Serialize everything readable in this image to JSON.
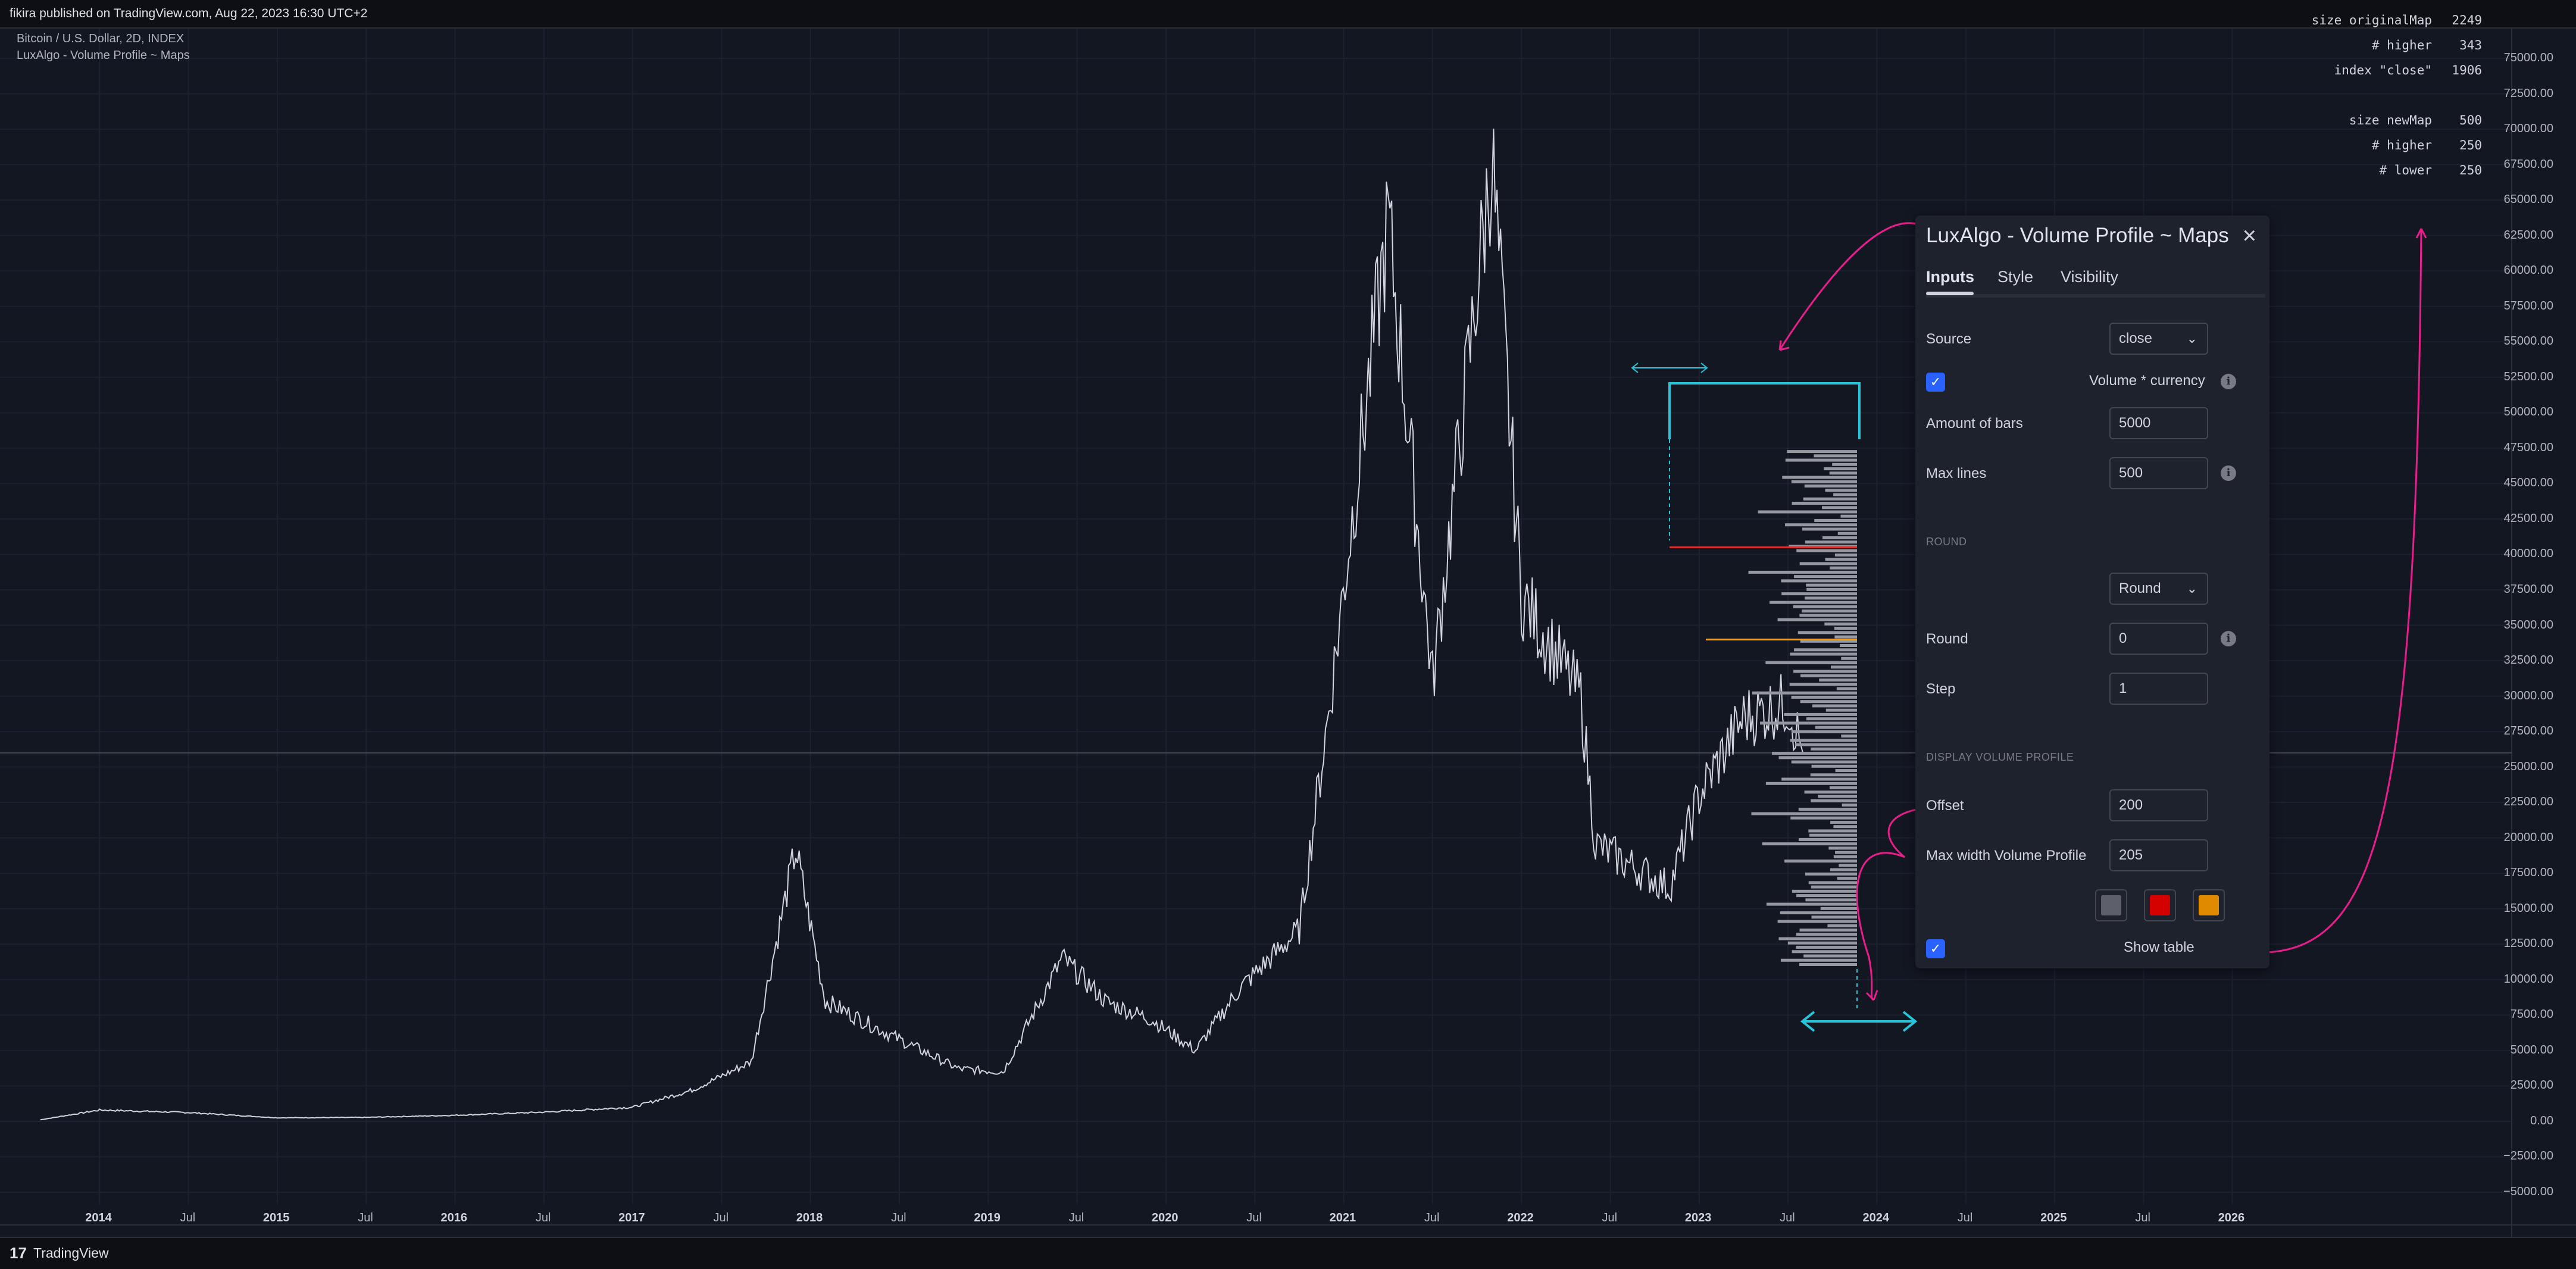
{
  "header": {
    "published": "fikira published on TradingView.com, Aug 22, 2023 16:30 UTC+2"
  },
  "legend": {
    "symbol": "Bitcoin / U.S. Dollar, 2D, INDEX",
    "indicator": "LuxAlgo - Volume Profile ~ Maps"
  },
  "footer": {
    "logo": "17",
    "brand": "TradingView"
  },
  "info_table": {
    "rows": [
      {
        "key": "size originalMap",
        "value": "2249"
      },
      {
        "key": "# higher",
        "value": "343"
      },
      {
        "key": "index \"close\"",
        "value": "1906"
      },
      {
        "key": "",
        "value": ""
      },
      {
        "key": "size newMap",
        "value": "500"
      },
      {
        "key": "# higher",
        "value": "250"
      },
      {
        "key": "# lower",
        "value": "250"
      }
    ]
  },
  "dialog": {
    "title": "LuxAlgo - Volume Profile ~ Maps",
    "close_icon": "close-icon",
    "tabs": [
      "Inputs",
      "Style",
      "Visibility"
    ],
    "active_tab": "Inputs",
    "source_label": "Source",
    "source_value": "close",
    "volume_currency_label": "Volume * currency",
    "volume_currency_checked": true,
    "amount_bars_label": "Amount of bars",
    "amount_bars_value": "5000",
    "max_lines_label": "Max lines",
    "max_lines_value": "500",
    "round_section": "ROUND",
    "round_mode_value": "Round",
    "round_label": "Round",
    "round_value": "0",
    "step_label": "Step",
    "step_value": "1",
    "display_section": "DISPLAY VOLUME PROFILE",
    "offset_label": "Offset",
    "offset_value": "200",
    "max_width_label": "Max width Volume Profile",
    "max_width_value": "205",
    "swatch_colors": [
      "#5d606b",
      "#d50000",
      "#e08a00"
    ],
    "show_table_label": "Show table",
    "show_table_checked": true,
    "info_icon": "i"
  },
  "axis": {
    "y_labels": [
      "75000.00",
      "72500.00",
      "70000.00",
      "67500.00",
      "65000.00",
      "62500.00",
      "60000.00",
      "57500.00",
      "55000.00",
      "52500.00",
      "50000.00",
      "47500.00",
      "45000.00",
      "42500.00",
      "40000.00",
      "37500.00",
      "35000.00",
      "32500.00",
      "30000.00",
      "27500.00",
      "25000.00",
      "22500.00",
      "20000.00",
      "17500.00",
      "15000.00",
      "12500.00",
      "10000.00",
      "7500.00",
      "5000.00",
      "2500.00",
      "0.00",
      "−2500.00",
      "−5000.00"
    ],
    "x_labels": [
      {
        "t": "2014",
        "year": true
      },
      {
        "t": "Jul",
        "year": false
      },
      {
        "t": "2015",
        "year": true
      },
      {
        "t": "Jul",
        "year": false
      },
      {
        "t": "2016",
        "year": true
      },
      {
        "t": "Jul",
        "year": false
      },
      {
        "t": "2017",
        "year": true
      },
      {
        "t": "Jul",
        "year": false
      },
      {
        "t": "2018",
        "year": true
      },
      {
        "t": "Jul",
        "year": false
      },
      {
        "t": "2019",
        "year": true
      },
      {
        "t": "Jul",
        "year": false
      },
      {
        "t": "2020",
        "year": true
      },
      {
        "t": "Jul",
        "year": false
      },
      {
        "t": "2021",
        "year": true
      },
      {
        "t": "Jul",
        "year": false
      },
      {
        "t": "2022",
        "year": true
      },
      {
        "t": "Jul",
        "year": false
      },
      {
        "t": "2023",
        "year": true
      },
      {
        "t": "Jul",
        "year": false
      },
      {
        "t": "2024",
        "year": true
      },
      {
        "t": "Jul",
        "year": false
      },
      {
        "t": "2025",
        "year": true
      },
      {
        "t": "Jul",
        "year": false
      },
      {
        "t": "2026",
        "year": true
      }
    ]
  },
  "chart_data": {
    "type": "line",
    "x": [
      "2013-09",
      "2014-01",
      "2014-07",
      "2015-01",
      "2015-07",
      "2016-01",
      "2016-07",
      "2017-01",
      "2017-05",
      "2017-09",
      "2017-12",
      "2018-02",
      "2018-06",
      "2018-11",
      "2019-02",
      "2019-06",
      "2019-09",
      "2019-12",
      "2020-03",
      "2020-06",
      "2020-10",
      "2020-12",
      "2021-04",
      "2021-07",
      "2021-11",
      "2022-01",
      "2022-05",
      "2022-06",
      "2022-11",
      "2023-01",
      "2023-04",
      "2023-07",
      "2023-08"
    ],
    "values": [
      110,
      800,
      620,
      250,
      280,
      430,
      650,
      1000,
      2200,
      4200,
      19200,
      8500,
      6300,
      3700,
      3500,
      11500,
      8400,
      7200,
      5000,
      9400,
      13500,
      29000,
      63500,
      31000,
      68000,
      37000,
      30000,
      19500,
      16500,
      23000,
      28500,
      29500,
      26000
    ],
    "ylim": [
      -5000,
      75000
    ],
    "xlim": [
      "2013-07",
      "2026-07"
    ],
    "volume_profile": {
      "top": 47500,
      "bottom": 11000,
      "levels": 120
    },
    "markers": [
      {
        "name": "red-line",
        "value": 40500,
        "color": "#d32f2f"
      },
      {
        "name": "orange-line",
        "value": 34000,
        "color": "#ff9800"
      }
    ],
    "current_price_line": 26000,
    "line_color": "#d1d4dc"
  }
}
